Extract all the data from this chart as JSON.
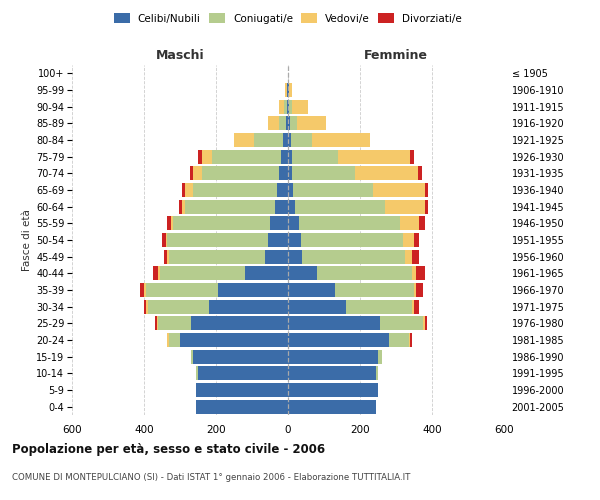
{
  "age_groups": [
    "0-4",
    "5-9",
    "10-14",
    "15-19",
    "20-24",
    "25-29",
    "30-34",
    "35-39",
    "40-44",
    "45-49",
    "50-54",
    "55-59",
    "60-64",
    "65-69",
    "70-74",
    "75-79",
    "80-84",
    "85-89",
    "90-94",
    "95-99",
    "100+"
  ],
  "birth_years": [
    "2001-2005",
    "1996-2000",
    "1991-1995",
    "1986-1990",
    "1981-1985",
    "1976-1980",
    "1971-1975",
    "1966-1970",
    "1961-1965",
    "1956-1960",
    "1951-1955",
    "1946-1950",
    "1941-1945",
    "1936-1940",
    "1931-1935",
    "1926-1930",
    "1921-1925",
    "1916-1920",
    "1911-1915",
    "1906-1910",
    "≤ 1905"
  ],
  "colors": {
    "celibi": "#3b6ca8",
    "coniugati": "#b5cc8e",
    "vedovi": "#f5c96a",
    "divorziati": "#cc2222"
  },
  "maschi": {
    "celibi": [
      255,
      255,
      250,
      265,
      300,
      270,
      220,
      195,
      120,
      65,
      55,
      50,
      35,
      30,
      25,
      20,
      15,
      5,
      3,
      2,
      0
    ],
    "coniugati": [
      0,
      0,
      5,
      5,
      30,
      90,
      170,
      200,
      235,
      265,
      280,
      270,
      250,
      235,
      215,
      190,
      80,
      20,
      8,
      2,
      0
    ],
    "vedovi": [
      0,
      0,
      0,
      0,
      5,
      5,
      5,
      5,
      5,
      5,
      5,
      5,
      10,
      20,
      25,
      30,
      55,
      30,
      15,
      3,
      0
    ],
    "divorziati": [
      0,
      0,
      0,
      0,
      0,
      5,
      5,
      10,
      15,
      10,
      10,
      10,
      8,
      10,
      8,
      10,
      0,
      0,
      0,
      0,
      0
    ]
  },
  "femmine": {
    "nubili": [
      245,
      250,
      245,
      250,
      280,
      255,
      160,
      130,
      80,
      40,
      35,
      30,
      20,
      15,
      12,
      10,
      8,
      5,
      3,
      2,
      0
    ],
    "coniugate": [
      0,
      0,
      5,
      10,
      55,
      120,
      185,
      220,
      265,
      285,
      285,
      280,
      250,
      220,
      175,
      130,
      60,
      20,
      8,
      2,
      0
    ],
    "vedove": [
      0,
      0,
      0,
      0,
      5,
      5,
      5,
      5,
      10,
      20,
      30,
      55,
      110,
      145,
      175,
      200,
      160,
      80,
      45,
      8,
      0
    ],
    "divorziate": [
      0,
      0,
      0,
      0,
      5,
      5,
      15,
      20,
      25,
      20,
      15,
      15,
      10,
      8,
      10,
      10,
      0,
      0,
      0,
      0,
      0
    ]
  },
  "xlim": 600,
  "title": "Popolazione per età, sesso e stato civile - 2006",
  "subtitle": "COMUNE DI MONTEPULCIANO (SI) - Dati ISTAT 1° gennaio 2006 - Elaborazione TUTTITALIA.IT",
  "ylabel_left": "Fasce di età",
  "xlabel_maschi": "Maschi",
  "xlabel_femmine": "Femmine"
}
